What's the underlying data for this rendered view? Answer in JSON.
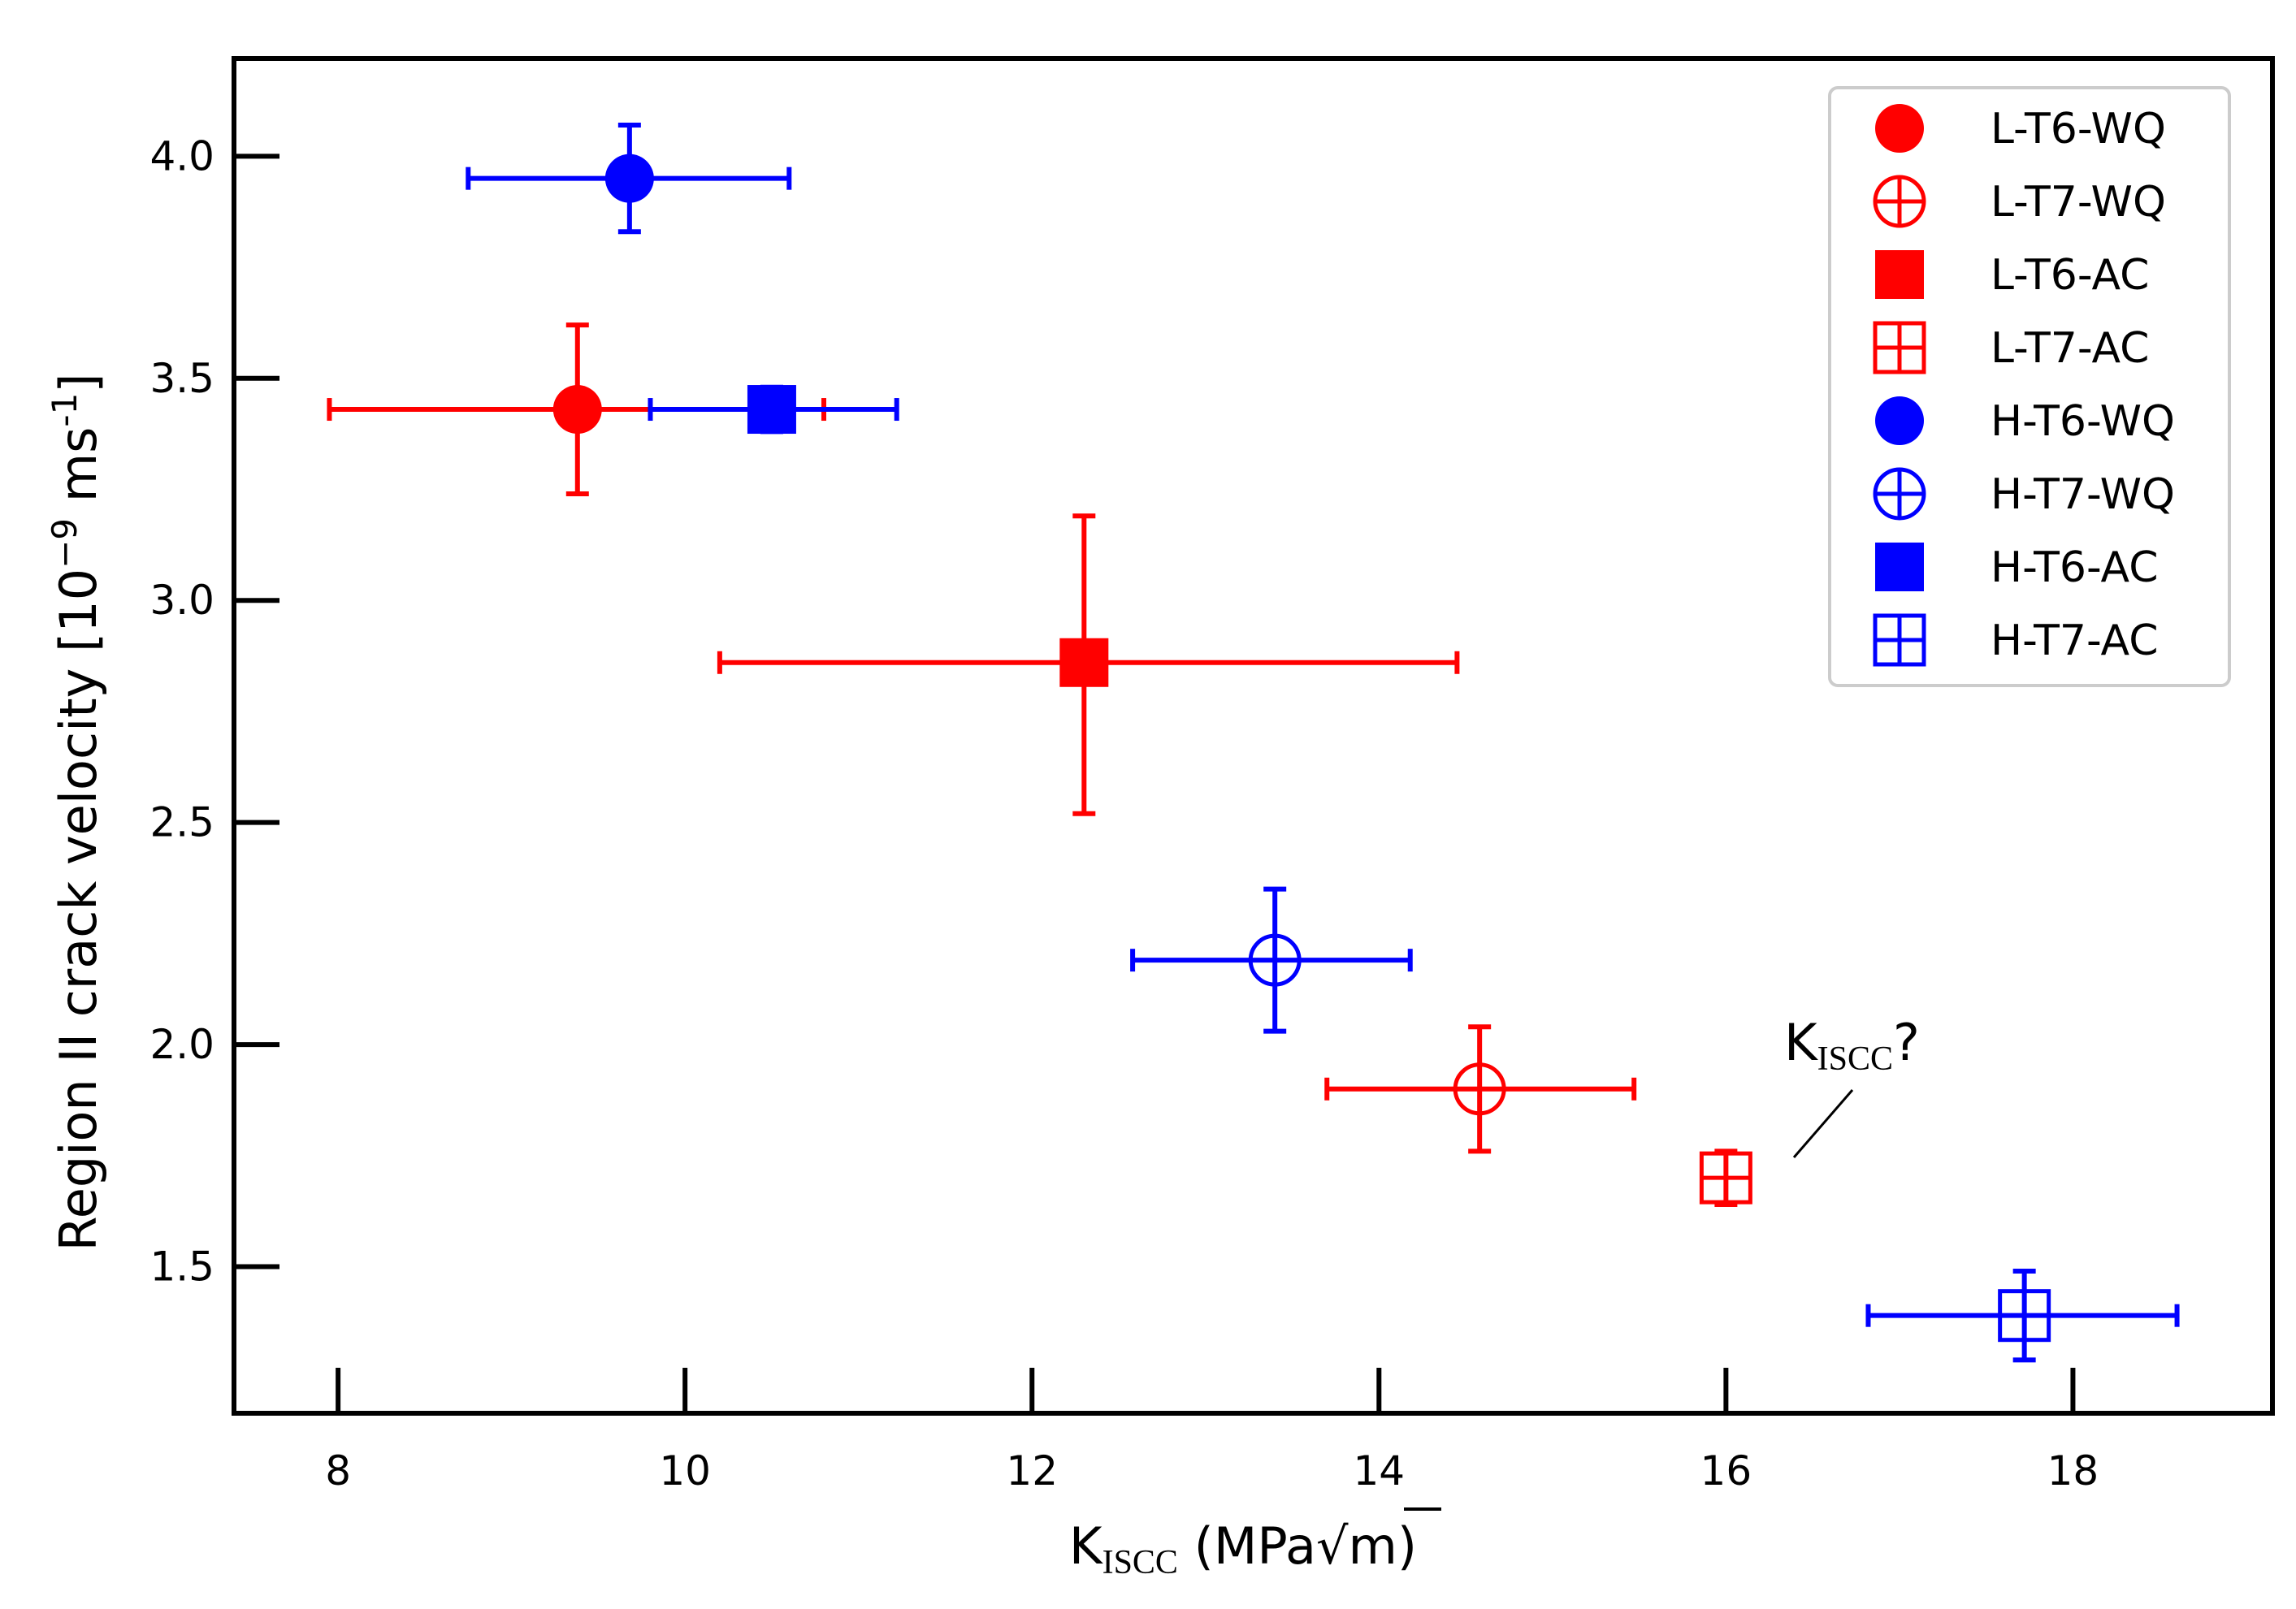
{
  "chart_data": {
    "type": "scatter",
    "title": "",
    "xlabel": {
      "main": "K",
      "sub": "ISCC",
      "units_prefix": " (MPa",
      "sqrt": "√",
      "units_var": "m",
      "units_suffix": ")"
    },
    "ylabel": {
      "main": "Region II crack velocity [10",
      "exp1": "−9",
      "mid": " ms",
      "exp2": "-1",
      "end": "]"
    },
    "xlim": [
      7.4,
      19.15
    ],
    "ylim": [
      1.17,
      4.22
    ],
    "xticks": [
      8,
      10,
      12,
      14,
      16,
      18
    ],
    "xtick_labels": [
      "8",
      "10",
      "12",
      "14",
      "16",
      "18"
    ],
    "yticks": [
      1.5,
      2.0,
      2.5,
      3.0,
      3.5,
      4.0
    ],
    "ytick_labels": [
      "1.5",
      "2.0",
      "2.5",
      "3.0",
      "3.5",
      "4.0"
    ],
    "grid": false,
    "legend_position": "top-right",
    "series": [
      {
        "name": "L-T6-WQ",
        "color": "#ff0000",
        "marker": "circle",
        "filled": true,
        "x": 9.38,
        "y": 3.43,
        "xerr": [
          7.95,
          10.8
        ],
        "yerr": [
          3.24,
          3.62
        ]
      },
      {
        "name": "L-T7-WQ",
        "color": "#ff0000",
        "marker": "circle",
        "filled": false,
        "x": 14.58,
        "y": 1.9,
        "xerr": [
          13.7,
          15.47
        ],
        "yerr": [
          1.76,
          2.04
        ]
      },
      {
        "name": "L-T6-AC",
        "color": "#ff0000",
        "marker": "square",
        "filled": true,
        "x": 12.3,
        "y": 2.86,
        "xerr": [
          10.2,
          14.45
        ],
        "yerr": [
          2.52,
          3.19
        ]
      },
      {
        "name": "L-T7-AC",
        "color": "#ff0000",
        "marker": "square",
        "filled": false,
        "x": 16.0,
        "y": 1.7,
        "xerr": [
          16.0,
          16.0
        ],
        "yerr": [
          1.64,
          1.76
        ]
      },
      {
        "name": "H-T6-WQ",
        "color": "#0000ff",
        "marker": "circle",
        "filled": true,
        "x": 9.68,
        "y": 3.95,
        "xerr": [
          8.75,
          10.6
        ],
        "yerr": [
          3.83,
          4.07
        ]
      },
      {
        "name": "H-T7-WQ",
        "color": "#0000ff",
        "marker": "circle",
        "filled": false,
        "x": 13.4,
        "y": 2.19,
        "xerr": [
          12.58,
          14.18
        ],
        "yerr": [
          2.03,
          2.35
        ]
      },
      {
        "name": "H-T6-AC",
        "color": "#0000ff",
        "marker": "square",
        "filled": true,
        "x": 10.5,
        "y": 3.43,
        "xerr": [
          9.8,
          11.22
        ],
        "yerr": [
          3.38,
          3.48
        ]
      },
      {
        "name": "H-T7-AC",
        "color": "#0000ff",
        "marker": "square",
        "filled": false,
        "x": 17.72,
        "y": 1.39,
        "xerr": [
          16.82,
          18.6
        ],
        "yerr": [
          1.29,
          1.49
        ]
      }
    ],
    "annotations": [
      {
        "text_main": "K",
        "text_sub": "ISCC",
        "text_end": "?",
        "points_to_series": "L-T7-AC"
      }
    ]
  }
}
